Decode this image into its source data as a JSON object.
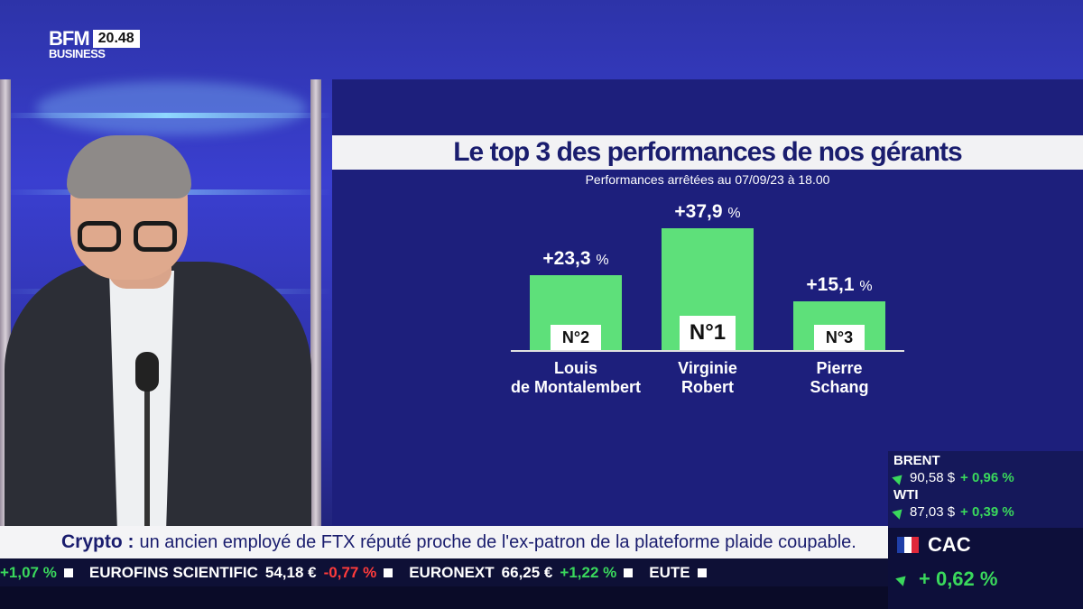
{
  "logo": {
    "brand": "BFM",
    "sub": "BUSINESS",
    "time": "20.48"
  },
  "chart_data": {
    "type": "bar",
    "title": "Le top 3 des performances de nos gérants",
    "subtitle": "Performances arrêtées au 07/09/23 à 18.00",
    "categories": [
      "Louis de Montalembert",
      "Virginie Robert",
      "Pierre Schang"
    ],
    "name_lines": [
      [
        "Louis",
        "de Montalembert"
      ],
      [
        "Virginie",
        "Robert"
      ],
      [
        "Pierre",
        "Schang"
      ]
    ],
    "values": [
      23.3,
      37.9,
      15.1
    ],
    "value_labels": [
      "+23,3",
      "+37,9",
      "+15,1"
    ],
    "unit": "%",
    "ranks": [
      "N°2",
      "N°1",
      "N°3"
    ],
    "bar_color": "#5ee07a",
    "ylim": [
      0,
      40
    ]
  },
  "markets": {
    "brent": {
      "name": "BRENT",
      "price": "90,58 $",
      "change": "+ 0,96 %"
    },
    "wti": {
      "name": "WTI",
      "price": "87,03 $",
      "change": "+ 0,39 %"
    }
  },
  "crawl": {
    "label": "Crypto :",
    "text": "un ancien employé de FTX réputé proche de l'ex-patron de la plateforme plaide coupable."
  },
  "ticker": [
    {
      "name": "",
      "price": "",
      "change": "+1,07 %",
      "dir": "up"
    },
    {
      "name": "EUROFINS SCIENTIFIC",
      "price": "54,18 €",
      "change": "-0,77 %",
      "dir": "down"
    },
    {
      "name": "EURONEXT",
      "price": "66,25 €",
      "change": "+1,22 %",
      "dir": "up"
    },
    {
      "name": "EUTE",
      "price": "",
      "change": "",
      "dir": "up"
    }
  ],
  "index": {
    "name": "CAC",
    "change": "+ 0,62 %"
  },
  "colors": {
    "panel": "#1d1f7c",
    "accent_green": "#3ad85c",
    "title_text": "#1a1d6e"
  }
}
